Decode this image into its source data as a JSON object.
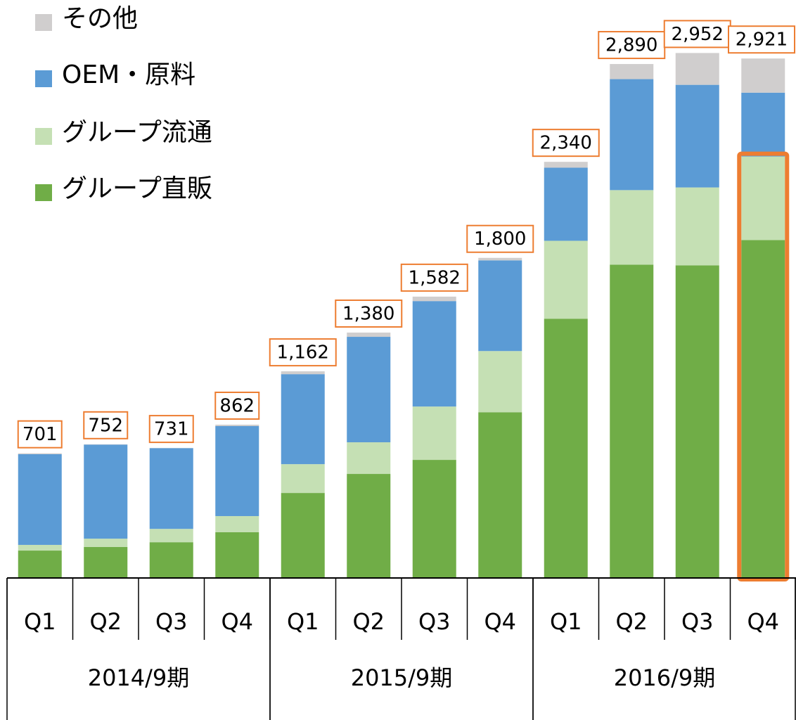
{
  "chart_data": {
    "type": "stacked_bar",
    "categories": [
      "Q1",
      "Q2",
      "Q3",
      "Q4",
      "Q1",
      "Q2",
      "Q3",
      "Q4",
      "Q1",
      "Q2",
      "Q3",
      "Q4"
    ],
    "groups": [
      {
        "label": "2014/9期",
        "span": 4
      },
      {
        "label": "2015/9期",
        "span": 4
      },
      {
        "label": "2016/9期",
        "span": 4
      }
    ],
    "series": [
      {
        "name": "グループ直販",
        "color": "#70ad47",
        "values": [
          154,
          174,
          201,
          257,
          478,
          585,
          664,
          932,
          1458,
          1762,
          1758,
          1900
        ]
      },
      {
        "name": "グループ流通",
        "color": "#c5e0b4",
        "values": [
          32,
          47,
          75,
          91,
          162,
          178,
          300,
          344,
          438,
          419,
          438,
          470
        ]
      },
      {
        "name": "OEM・原料",
        "color": "#5b9bd5",
        "values": [
          510,
          529,
          454,
          506,
          506,
          593,
          593,
          510,
          411,
          624,
          577,
          359
        ]
      },
      {
        "name": "その他",
        "color": "#d0cece",
        "values": [
          5,
          2,
          1,
          8,
          16,
          24,
          25,
          14,
          33,
          85,
          179,
          192
        ]
      }
    ],
    "totals": [
      701,
      752,
      731,
      862,
      1162,
      1380,
      1582,
      1800,
      2340,
      2890,
      2952,
      2921
    ],
    "total_labels": [
      "701",
      "752",
      "731",
      "862",
      "1,162",
      "1,380",
      "1,582",
      "1,800",
      "2,340",
      "2,890",
      "2,952",
      "2,921"
    ],
    "ylim": [
      0,
      3250
    ],
    "label_box_color": "#ed7d31",
    "highlight": {
      "category": 11,
      "series": [
        0,
        1
      ],
      "color": "#ed7d31"
    }
  }
}
